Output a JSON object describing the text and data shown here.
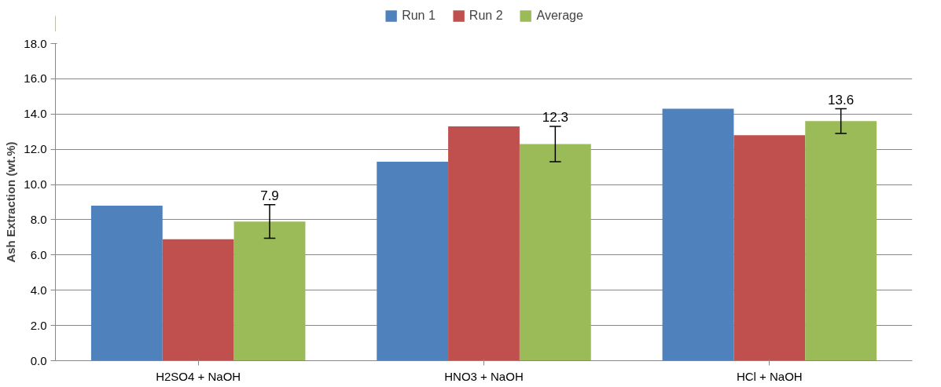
{
  "chart_data": {
    "type": "bar",
    "ylabel": "Ash Extraction (wt.%)",
    "categories": [
      "H2SO4 + NaOH",
      "HNO3 + NaOH",
      "HCl + NaOH"
    ],
    "series": [
      {
        "name": "Run 1",
        "color": "#4f81bd",
        "values": [
          8.8,
          11.3,
          14.3
        ]
      },
      {
        "name": "Run 2",
        "color": "#c0504d",
        "values": [
          6.9,
          13.3,
          12.8
        ]
      },
      {
        "name": "Average",
        "color": "#9bbb59",
        "values": [
          7.9,
          12.3,
          13.6
        ],
        "errors": [
          0.95,
          1.0,
          0.7
        ],
        "value_labels": [
          "7.9",
          "12.3",
          "13.6"
        ]
      }
    ],
    "ylim": [
      0,
      18
    ],
    "yticks": [
      {
        "value": 0,
        "label": "0.0"
      },
      {
        "value": 2,
        "label": "2.0"
      },
      {
        "value": 4,
        "label": "4.0"
      },
      {
        "value": 6,
        "label": "6.0"
      },
      {
        "value": 8,
        "label": "8.0"
      },
      {
        "value": 10,
        "label": "10.0"
      },
      {
        "value": 12,
        "label": "12.0"
      },
      {
        "value": 14,
        "label": "14.0"
      },
      {
        "value": 16,
        "label": "16.0"
      },
      {
        "value": 18,
        "label": "18.0"
      }
    ],
    "grid": "y",
    "legend": "top"
  }
}
